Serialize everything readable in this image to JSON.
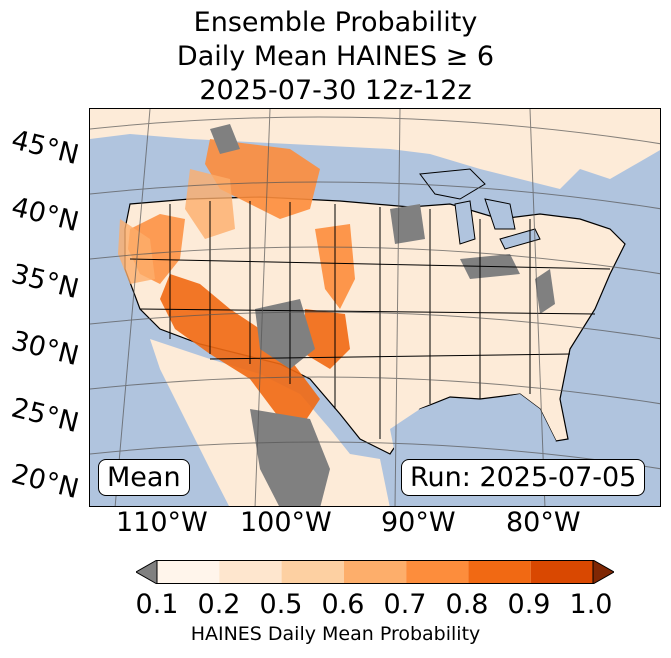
{
  "title": {
    "line1": "Ensemble Probability",
    "line2": "Daily Mean HAINES ≥ 6",
    "line3": "2025-07-30 12z-12z"
  },
  "map": {
    "lat_labels": [
      "45°N",
      "40°N",
      "35°N",
      "30°N",
      "25°N",
      "20°N"
    ],
    "lon_labels": [
      "110°W",
      "100°W",
      "90°W",
      "80°W"
    ],
    "mean_label": "Mean",
    "run_label": "Run: 2025-07-05",
    "colors": {
      "ocean": "#b0c4de",
      "land": "#fdebd8",
      "missing": "#808080",
      "border": "#000000"
    }
  },
  "colorbar": {
    "ticks": [
      "0.1",
      "0.2",
      "0.5",
      "0.6",
      "0.7",
      "0.8",
      "0.9",
      "1.0"
    ],
    "colors": [
      "#fff5eb",
      "#fee6ce",
      "#fdd0a2",
      "#fdae6b",
      "#fd8d3c",
      "#f16913",
      "#d94801"
    ],
    "under_color": "#808080",
    "over_color": "#7f2704",
    "label": "HAINES Daily Mean Probability"
  }
}
